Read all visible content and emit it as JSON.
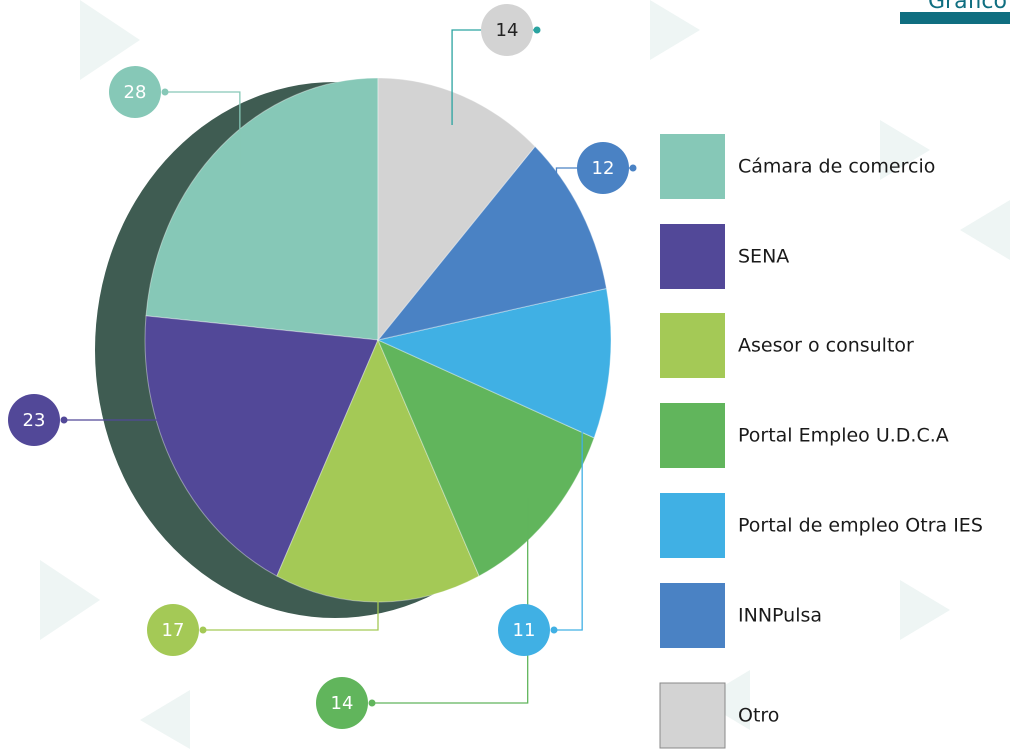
{
  "chart_data": {
    "type": "pie",
    "title": "Gráfico",
    "categories": [
      "Cámara de comercio",
      "SENA",
      "Asesor o consultor",
      "Portal Empleo U.D.C.A",
      "Portal de empleo Otra IES",
      "INNPulsa",
      "Otro"
    ],
    "values": [
      28,
      23,
      17,
      14,
      11,
      12,
      14
    ],
    "colors": [
      "#86c8b7",
      "#524898",
      "#a4c956",
      "#61b55c",
      "#40b0e4",
      "#4a82c4",
      "#d3d3d3"
    ]
  }
}
